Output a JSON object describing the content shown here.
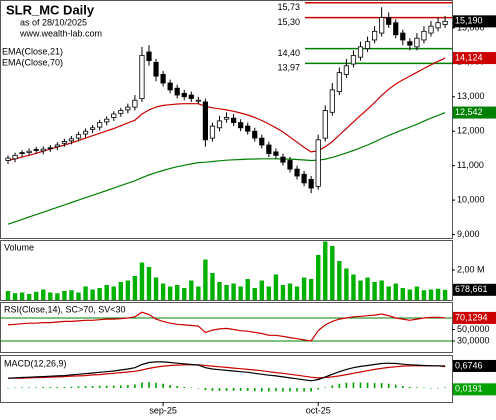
{
  "chart_data": [
    {
      "type": "candlestick",
      "title": "SLR_MC Daily",
      "subtitle": "as of 28/10/2025",
      "source": "www.wealth-lab.com",
      "open": [
        11.15,
        11.2,
        11.38,
        11.38,
        11.47,
        11.43,
        11.52,
        11.55,
        11.65,
        11.72,
        11.8,
        11.92,
        12.05,
        12.12,
        12.27,
        12.4,
        12.52,
        12.62,
        12.7,
        12.95,
        14.3,
        14.0,
        13.65,
        13.4,
        13.25,
        13.1,
        13.05,
        12.9,
        12.85,
        11.8,
        12.1,
        12.35,
        12.38,
        12.25,
        12.15,
        12.0,
        11.8,
        11.6,
        11.4,
        11.25,
        11.15,
        10.9,
        10.75,
        10.6,
        10.4,
        11.8,
        12.55,
        13.15,
        13.65,
        13.95,
        14.15,
        14.4,
        14.65,
        14.85,
        15.3,
        15.15,
        14.85,
        14.6,
        14.45,
        14.65,
        14.85,
        15.0,
        15.1
      ],
      "high": [
        11.3,
        11.38,
        11.45,
        11.5,
        11.55,
        11.56,
        11.6,
        11.68,
        11.78,
        11.86,
        11.98,
        12.08,
        12.18,
        12.33,
        12.43,
        12.58,
        12.68,
        12.8,
        13.05,
        14.45,
        14.5,
        14.1,
        13.75,
        13.5,
        13.35,
        13.2,
        13.15,
        13.0,
        12.95,
        12.25,
        12.45,
        12.55,
        12.5,
        12.35,
        12.25,
        12.1,
        11.9,
        11.7,
        11.5,
        11.35,
        11.25,
        11.0,
        10.85,
        10.7,
        11.9,
        12.75,
        13.4,
        13.85,
        14.1,
        14.35,
        14.6,
        14.75,
        15.05,
        15.6,
        15.45,
        15.25,
        14.95,
        14.7,
        14.85,
        15.05,
        15.2,
        15.3,
        15.35
      ],
      "low": [
        11.05,
        11.1,
        11.25,
        11.3,
        11.35,
        11.33,
        11.4,
        11.45,
        11.55,
        11.62,
        11.7,
        11.82,
        11.95,
        12.02,
        12.17,
        12.3,
        12.42,
        12.52,
        12.6,
        12.85,
        13.9,
        13.45,
        13.3,
        13.1,
        12.95,
        12.9,
        12.85,
        12.8,
        11.55,
        11.7,
        12.0,
        12.25,
        12.15,
        12.0,
        11.9,
        11.7,
        11.5,
        11.25,
        11.2,
        11.0,
        10.8,
        10.6,
        10.4,
        10.2,
        10.3,
        11.7,
        12.45,
        13.05,
        13.55,
        13.85,
        14.05,
        14.3,
        14.55,
        14.75,
        15.0,
        14.7,
        14.5,
        14.35,
        14.35,
        14.55,
        14.75,
        14.9,
        15.0
      ],
      "close": [
        11.22,
        11.3,
        11.35,
        11.42,
        11.45,
        11.48,
        11.5,
        11.6,
        11.7,
        11.78,
        11.9,
        12.0,
        12.1,
        12.25,
        12.35,
        12.5,
        12.6,
        12.7,
        12.9,
        14.2,
        14.05,
        13.6,
        13.4,
        13.2,
        13.05,
        13.0,
        12.95,
        12.9,
        11.75,
        12.15,
        12.3,
        12.4,
        12.25,
        12.1,
        12.0,
        11.8,
        11.6,
        11.35,
        11.3,
        11.1,
        10.9,
        10.7,
        10.5,
        10.35,
        11.75,
        12.6,
        13.2,
        13.7,
        13.9,
        14.2,
        14.45,
        14.6,
        14.9,
        15.3,
        15.1,
        14.8,
        14.65,
        14.5,
        14.7,
        14.9,
        15.05,
        15.15,
        15.19
      ],
      "last_label": "15,190",
      "series": [
        {
          "name": "EMA(Close,21)",
          "color": "#cc0000",
          "last_label": "14,124",
          "values": [
            11.15,
            11.2,
            11.25,
            11.3,
            11.36,
            11.42,
            11.48,
            11.54,
            11.6,
            11.66,
            11.73,
            11.8,
            11.87,
            11.94,
            12.01,
            12.08,
            12.16,
            12.24,
            12.32,
            12.5,
            12.62,
            12.7,
            12.75,
            12.77,
            12.79,
            12.8,
            12.8,
            12.8,
            12.72,
            12.68,
            12.65,
            12.62,
            12.58,
            12.53,
            12.47,
            12.4,
            12.31,
            12.21,
            12.1,
            11.98,
            11.83,
            11.68,
            11.53,
            11.4,
            11.43,
            11.55,
            11.7,
            11.89,
            12.08,
            12.27,
            12.46,
            12.64,
            12.83,
            13.04,
            13.22,
            13.37,
            13.49,
            13.6,
            13.71,
            13.82,
            13.93,
            14.03,
            14.124
          ]
        },
        {
          "name": "EMA(Close,70)",
          "color": "#008000",
          "last_label": "12,542",
          "values": [
            9.3,
            9.37,
            9.44,
            9.51,
            9.58,
            9.65,
            9.72,
            9.79,
            9.86,
            9.93,
            10.0,
            10.07,
            10.14,
            10.21,
            10.28,
            10.35,
            10.42,
            10.49,
            10.56,
            10.65,
            10.73,
            10.8,
            10.86,
            10.92,
            10.97,
            11.01,
            11.05,
            11.09,
            11.1,
            11.12,
            11.14,
            11.16,
            11.17,
            11.18,
            11.19,
            11.195,
            11.2,
            11.2,
            11.2,
            11.195,
            11.19,
            11.18,
            11.165,
            11.15,
            11.16,
            11.19,
            11.24,
            11.3,
            11.37,
            11.44,
            11.52,
            11.6,
            11.69,
            11.79,
            11.88,
            11.96,
            12.04,
            12.12,
            12.2,
            12.29,
            12.38,
            12.46,
            12.542
          ]
        }
      ],
      "levels": [
        {
          "value": 15.73,
          "label": "15,73",
          "color": "#cc0000"
        },
        {
          "value": 15.3,
          "label": "15,30",
          "color": "#cc0000"
        },
        {
          "value": 14.4,
          "label": "14,40",
          "color": "#008000"
        },
        {
          "value": 13.97,
          "label": "13,97",
          "color": "#008000"
        }
      ],
      "ylim": [
        8.9,
        15.81
      ],
      "yticks": [
        {
          "value": 9,
          "label": "9,000"
        },
        {
          "value": 10,
          "label": "10,000"
        },
        {
          "value": 11,
          "label": "11,000"
        },
        {
          "value": 12,
          "label": "12,000"
        },
        {
          "value": 13,
          "label": "13,000"
        },
        {
          "value": 14,
          "label": "14,000"
        },
        {
          "value": 15,
          "label": "15,000"
        }
      ]
    },
    {
      "type": "bar",
      "title": "Volume",
      "color": "#00b000",
      "last_label": "678,661",
      "values": [
        600000,
        450000,
        500000,
        400000,
        550000,
        700000,
        500000,
        450000,
        600000,
        650000,
        500000,
        900000,
        700000,
        800000,
        1000000,
        900000,
        1200000,
        1300000,
        1600000,
        2500000,
        2200000,
        1500000,
        1100000,
        900000,
        1000000,
        800000,
        1300000,
        900000,
        2700000,
        1800000,
        1200000,
        1000000,
        1100000,
        900000,
        1400000,
        800000,
        1300000,
        900000,
        1700000,
        1000000,
        1100000,
        900000,
        1500000,
        1400000,
        3000000,
        3900000,
        3600000,
        2600000,
        2100000,
        1700000,
        1300000,
        1500000,
        1200000,
        1300000,
        900000,
        1100000,
        800000,
        700000,
        900000,
        650000,
        700000,
        750000,
        678661
      ],
      "ylim": [
        0,
        4000000
      ],
      "yticks": [
        {
          "value": 2000000,
          "label": "2,00 M"
        }
      ]
    },
    {
      "type": "line",
      "title": "RSI(Close,14), SC>70, SV<30",
      "color": "#cc0000",
      "last_label": "70,1294",
      "values": [
        58,
        59,
        60,
        61,
        61,
        62,
        62,
        63,
        64,
        64,
        65,
        66,
        66,
        67,
        68,
        68,
        69,
        70,
        72,
        80,
        76,
        68,
        64,
        61,
        59,
        58,
        57,
        56,
        45,
        49,
        51,
        52,
        50,
        48,
        47,
        45,
        43,
        40,
        40,
        38,
        36,
        34,
        32,
        30,
        48,
        58,
        64,
        68,
        70,
        72,
        73,
        74,
        75,
        77,
        74,
        70,
        68,
        66,
        68,
        70,
        71,
        71,
        70.1294
      ],
      "levels": [
        70,
        30
      ],
      "level_color": "#008000",
      "ylim": [
        10.9,
        97.8
      ],
      "yticks": [
        {
          "value": 50,
          "label": "50,0000"
        },
        {
          "value": 30,
          "label": "30,0000"
        }
      ]
    },
    {
      "type": "macd",
      "title": "MACD(12,26,9)",
      "categories": [
        null,
        null,
        null,
        null,
        null,
        null,
        null,
        null,
        null,
        null,
        null,
        null,
        null,
        null,
        null,
        null,
        null,
        null,
        null,
        null,
        null,
        null,
        "sep-25",
        null,
        null,
        null,
        null,
        null,
        null,
        null,
        null,
        null,
        null,
        null,
        null,
        null,
        null,
        null,
        null,
        null,
        null,
        null,
        null,
        null,
        "oct-25",
        null,
        null,
        null,
        null,
        null,
        null,
        null,
        null,
        null,
        null,
        null,
        null,
        null,
        null,
        null,
        null,
        null,
        null
      ],
      "macd": {
        "color": "#000000",
        "last_label": "0,6746",
        "values": [
          0.3,
          0.31,
          0.32,
          0.33,
          0.34,
          0.35,
          0.36,
          0.37,
          0.38,
          0.4,
          0.42,
          0.44,
          0.46,
          0.48,
          0.5,
          0.52,
          0.55,
          0.58,
          0.62,
          0.72,
          0.78,
          0.8,
          0.8,
          0.78,
          0.76,
          0.74,
          0.72,
          0.7,
          0.62,
          0.58,
          0.56,
          0.54,
          0.52,
          0.5,
          0.48,
          0.45,
          0.42,
          0.39,
          0.37,
          0.34,
          0.31,
          0.28,
          0.25,
          0.22,
          0.26,
          0.34,
          0.42,
          0.5,
          0.57,
          0.62,
          0.66,
          0.69,
          0.72,
          0.75,
          0.76,
          0.75,
          0.73,
          0.71,
          0.7,
          0.69,
          0.68,
          0.68,
          0.6746
        ]
      },
      "signal": {
        "color": "#cc0000",
        "values": [
          0.3,
          0.3,
          0.3,
          0.31,
          0.32,
          0.32,
          0.33,
          0.34,
          0.35,
          0.36,
          0.37,
          0.38,
          0.4,
          0.41,
          0.43,
          0.45,
          0.47,
          0.49,
          0.51,
          0.55,
          0.6,
          0.64,
          0.67,
          0.69,
          0.7,
          0.71,
          0.71,
          0.71,
          0.69,
          0.67,
          0.65,
          0.63,
          0.61,
          0.59,
          0.57,
          0.55,
          0.53,
          0.5,
          0.47,
          0.45,
          0.42,
          0.39,
          0.36,
          0.33,
          0.31,
          0.32,
          0.34,
          0.37,
          0.41,
          0.45,
          0.49,
          0.53,
          0.57,
          0.6,
          0.63,
          0.65,
          0.67,
          0.68,
          0.68,
          0.68,
          0.68,
          0.68,
          0.6555
        ]
      },
      "histogram": {
        "color": "#00a000",
        "last_label": "0,0191",
        "values": [
          0,
          0.01,
          0.02,
          0.02,
          0.02,
          0.03,
          0.03,
          0.03,
          0.03,
          0.04,
          0.05,
          0.06,
          0.06,
          0.07,
          0.07,
          0.07,
          0.08,
          0.09,
          0.11,
          0.17,
          0.18,
          0.16,
          0.13,
          0.09,
          0.06,
          0.03,
          0.01,
          -0.01,
          -0.07,
          -0.09,
          -0.09,
          -0.09,
          -0.09,
          -0.09,
          -0.09,
          -0.1,
          -0.11,
          -0.11,
          -0.1,
          -0.11,
          -0.11,
          -0.11,
          -0.11,
          -0.11,
          -0.05,
          0.02,
          0.08,
          0.13,
          0.16,
          0.17,
          0.17,
          0.16,
          0.15,
          0.15,
          0.13,
          0.1,
          0.06,
          0.03,
          0.02,
          0.01,
          0,
          0,
          0.0191
        ]
      },
      "ylim": [
        -0.43,
        0.98
      ]
    }
  ]
}
